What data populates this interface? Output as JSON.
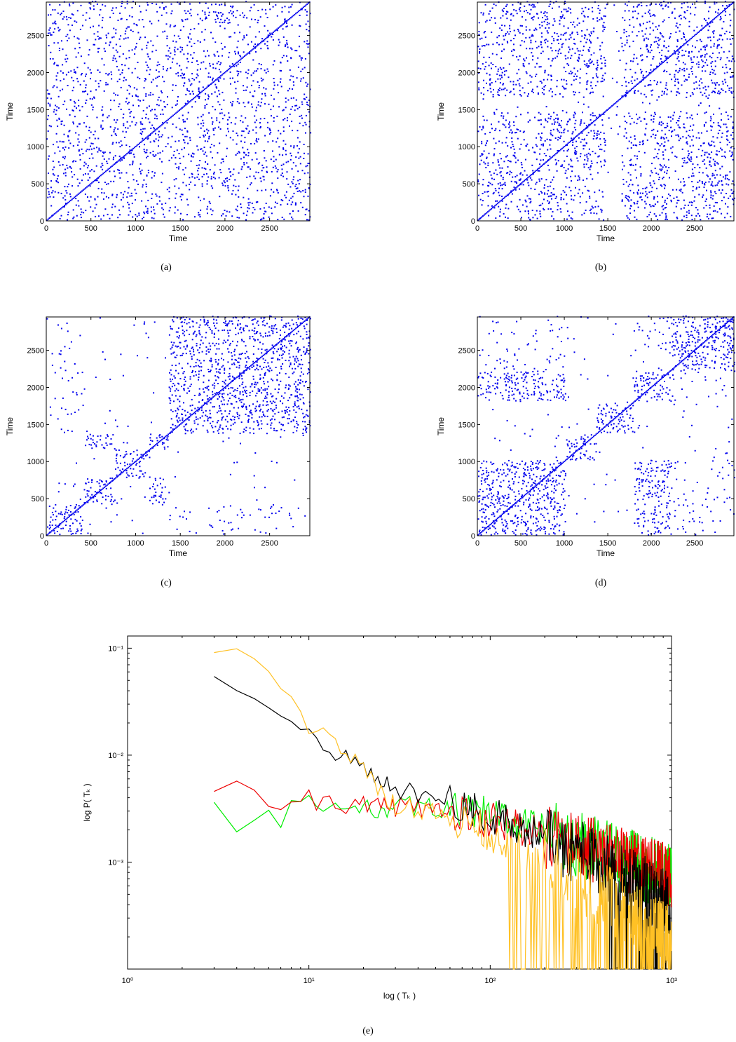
{
  "chart_data": [
    {
      "panel": "a",
      "type": "scatter",
      "caption": "(a)",
      "xlabel": "Time",
      "ylabel": "Time",
      "xlim": [
        0,
        2950
      ],
      "ylim": [
        0,
        2950
      ],
      "xticks": [
        0,
        500,
        1000,
        1500,
        2000,
        2500
      ],
      "yticks": [
        0,
        500,
        1000,
        1500,
        2000,
        2500
      ],
      "color": "#0000ee",
      "structure": "uniform",
      "segments": [
        0,
        2950
      ]
    },
    {
      "panel": "b",
      "type": "scatter",
      "caption": "(b)",
      "xlabel": "Time",
      "ylabel": "Time",
      "xlim": [
        0,
        2950
      ],
      "ylim": [
        0,
        2950
      ],
      "xticks": [
        0,
        500,
        1000,
        1500,
        2000,
        2500
      ],
      "yticks": [
        0,
        500,
        1000,
        1500,
        2000,
        2500
      ],
      "color": "#0000ee",
      "structure": "banded",
      "segments": [
        0,
        450,
        700,
        1000,
        1450,
        1650,
        1850,
        2200,
        2500,
        2950
      ]
    },
    {
      "panel": "c",
      "type": "scatter",
      "caption": "(c)",
      "xlabel": "Time",
      "ylabel": "Time",
      "xlim": [
        0,
        2950
      ],
      "ylim": [
        0,
        2950
      ],
      "xticks": [
        0,
        500,
        1000,
        1500,
        2000,
        2500
      ],
      "yticks": [
        0,
        500,
        1000,
        1500,
        2000,
        2500
      ],
      "color": "#0000ee",
      "structure": "block",
      "segments": [
        0,
        400,
        750,
        1150,
        1350,
        1700,
        2200,
        2500,
        2950
      ],
      "groups": [
        0,
        1,
        2,
        1,
        3,
        3,
        3,
        3
      ]
    },
    {
      "panel": "d",
      "type": "scatter",
      "caption": "(d)",
      "xlabel": "Time",
      "ylabel": "Time",
      "xlim": [
        0,
        2950
      ],
      "ylim": [
        0,
        2950
      ],
      "xticks": [
        0,
        500,
        1000,
        1500,
        2000,
        2500
      ],
      "yticks": [
        0,
        500,
        1000,
        1500,
        2000,
        2500
      ],
      "color": "#0000ee",
      "structure": "block",
      "segments": [
        0,
        1000,
        1350,
        1800,
        2200,
        2950
      ],
      "groups": [
        0,
        1,
        2,
        0,
        3
      ]
    },
    {
      "panel": "e",
      "type": "line",
      "caption": "(e)",
      "xlabel": "log ( Tₖ )",
      "ylabel": "log P( Tₖ )",
      "xscale": "log",
      "yscale": "log",
      "xlim": [
        1,
        1000
      ],
      "ylim": [
        0.0001,
        0.13
      ],
      "xtick_labels": [
        "10⁰",
        "10¹",
        "10²",
        "10³"
      ],
      "ytick_labels": [
        "10⁻³",
        "10⁻²",
        "10⁻¹"
      ],
      "legend": "none",
      "series": [
        {
          "color": "#00ee00",
          "x": [
            3,
            4,
            5,
            6,
            7,
            8,
            10,
            15,
            20,
            30,
            50,
            100,
            200,
            500,
            1000
          ],
          "y": [
            0.0035,
            0.002,
            0.0025,
            0.003,
            0.0021,
            0.0038,
            0.0034,
            0.0032,
            0.003,
            0.0034,
            0.0032,
            0.0027,
            0.0019,
            0.0011,
            0.0007
          ]
        },
        {
          "color": "#ee0000",
          "x": [
            3,
            4,
            5,
            6,
            7,
            8,
            10,
            15,
            20,
            30,
            50,
            100,
            200,
            500,
            1000
          ],
          "y": [
            0.0044,
            0.0055,
            0.0049,
            0.0033,
            0.003,
            0.0037,
            0.0038,
            0.0032,
            0.0036,
            0.0033,
            0.003,
            0.0025,
            0.0018,
            0.0011,
            0.0007
          ]
        },
        {
          "color": "#000000",
          "x": [
            3,
            4,
            5,
            6,
            8,
            10,
            15,
            20,
            30,
            50,
            100,
            200,
            500,
            1000
          ],
          "y": [
            0.052,
            0.039,
            0.033,
            0.028,
            0.021,
            0.014,
            0.01,
            0.0075,
            0.005,
            0.0038,
            0.0028,
            0.0017,
            0.0008,
            0.0004
          ]
        },
        {
          "color": "#ffc125",
          "x": [
            3,
            4,
            5,
            6,
            7,
            8,
            10,
            15,
            20,
            25,
            30,
            50,
            100,
            200,
            500,
            1000
          ],
          "y": [
            0.095,
            0.097,
            0.08,
            0.062,
            0.042,
            0.036,
            0.02,
            0.011,
            0.0075,
            0.0043,
            0.0035,
            0.003,
            0.0019,
            0.001,
            0.0004,
            0.0002
          ]
        }
      ]
    }
  ]
}
